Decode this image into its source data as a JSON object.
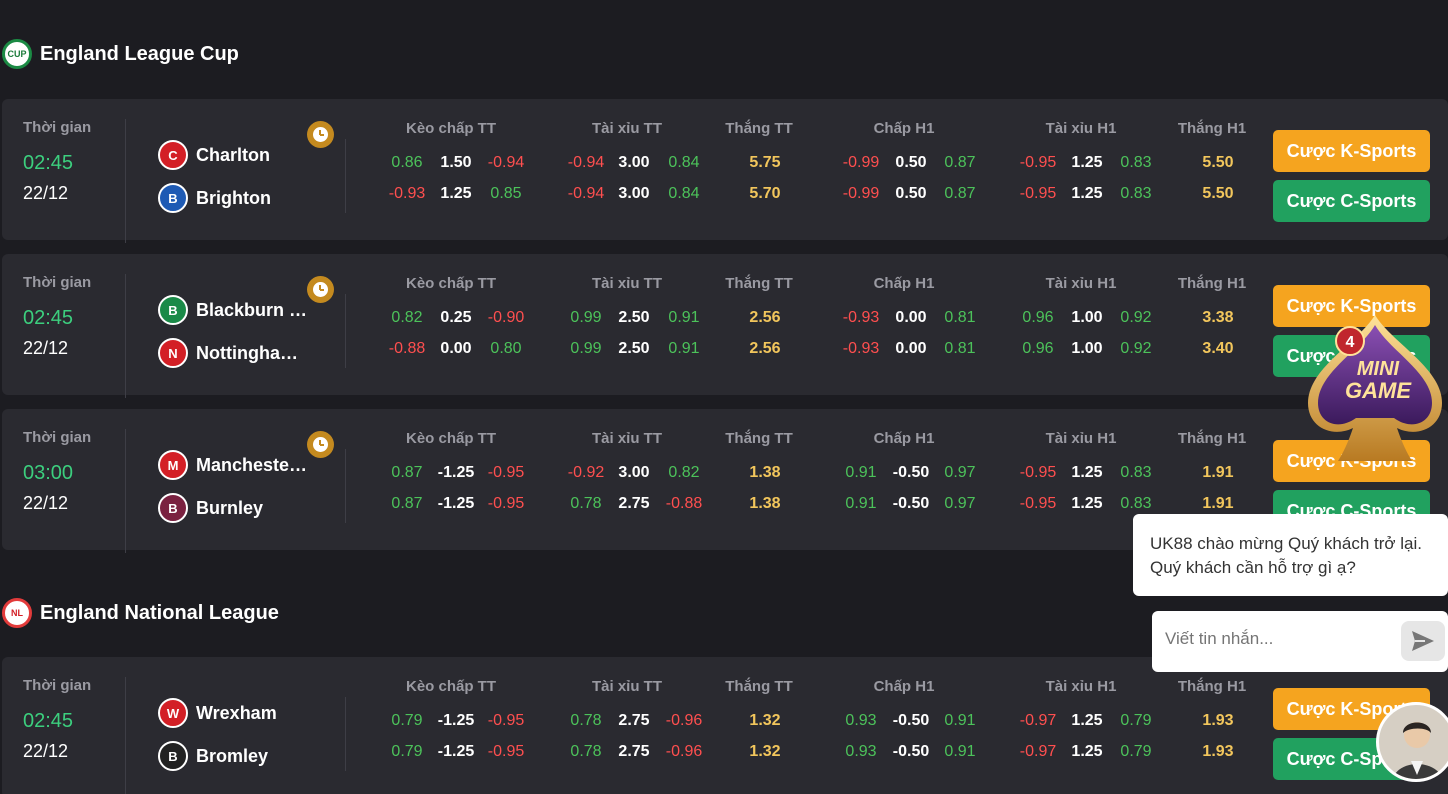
{
  "leagues": [
    {
      "name": "England League Cup",
      "logo_text": "CUP"
    },
    {
      "name": "England National League",
      "logo_text": "NL"
    }
  ],
  "column_headers": [
    "Kèo chấp TT",
    "Tài xỉu TT",
    "Thắng TT",
    "Chấp H1",
    "Tài xỉu H1",
    "Thắng H1"
  ],
  "time_label": "Thời gian",
  "buttons": {
    "k_sports": "Cược K-Sports",
    "c_sports": "Cược C-Sports"
  },
  "matches": [
    {
      "time": "02:45",
      "date": "22/12",
      "home": {
        "name": "Charlton",
        "logo": "C",
        "color": "#d31f26"
      },
      "away": {
        "name": "Brighton",
        "logo": "B",
        "color": "#1e5ab4"
      },
      "rows": [
        [
          "0.86",
          "1.50",
          "-0.94",
          "-0.94",
          "3.00",
          "0.84",
          "5.75",
          "-0.99",
          "0.50",
          "0.87",
          "-0.95",
          "1.25",
          "0.83",
          "5.50"
        ],
        [
          "-0.93",
          "1.25",
          "0.85",
          "-0.94",
          "3.00",
          "0.84",
          "5.70",
          "-0.99",
          "0.50",
          "0.87",
          "-0.95",
          "1.25",
          "0.83",
          "5.50"
        ]
      ]
    },
    {
      "time": "02:45",
      "date": "22/12",
      "home": {
        "name": "Blackburn Rovers",
        "logo": "B",
        "color": "#1a8a48"
      },
      "away": {
        "name": "Nottingham Forest",
        "logo": "N",
        "color": "#d31f26"
      },
      "rows": [
        [
          "0.82",
          "0.25",
          "-0.90",
          "0.99",
          "2.50",
          "0.91",
          "2.56",
          "-0.93",
          "0.00",
          "0.81",
          "0.96",
          "1.00",
          "0.92",
          "3.38"
        ],
        [
          "-0.88",
          "0.00",
          "0.80",
          "0.99",
          "2.50",
          "0.91",
          "2.56",
          "-0.93",
          "0.00",
          "0.81",
          "0.96",
          "1.00",
          "0.92",
          "3.40"
        ]
      ]
    },
    {
      "time": "03:00",
      "date": "22/12",
      "home": {
        "name": "Manchester United",
        "logo": "M",
        "color": "#d31f26"
      },
      "away": {
        "name": "Burnley",
        "logo": "B",
        "color": "#7a2140"
      },
      "rows": [
        [
          "0.87",
          "-1.25",
          "-0.95",
          "-0.92",
          "3.00",
          "0.82",
          "1.38",
          "0.91",
          "-0.50",
          "0.97",
          "-0.95",
          "1.25",
          "0.83",
          "1.91"
        ],
        [
          "0.87",
          "-1.25",
          "-0.95",
          "0.78",
          "2.75",
          "-0.88",
          "1.38",
          "0.91",
          "-0.50",
          "0.97",
          "-0.95",
          "1.25",
          "0.83",
          "1.91"
        ]
      ]
    },
    {
      "time": "02:45",
      "date": "22/12",
      "home": {
        "name": "Wrexham",
        "logo": "W",
        "color": "#d31f26"
      },
      "away": {
        "name": "Bromley",
        "logo": "B",
        "color": "#222"
      },
      "rows": [
        [
          "0.79",
          "-1.25",
          "-0.95",
          "0.78",
          "2.75",
          "-0.96",
          "1.32",
          "0.93",
          "-0.50",
          "0.91",
          "-0.97",
          "1.25",
          "0.79",
          "1.93"
        ],
        [
          "0.79",
          "-1.25",
          "-0.95",
          "0.78",
          "2.75",
          "-0.96",
          "1.32",
          "0.93",
          "-0.50",
          "0.91",
          "-0.97",
          "1.25",
          "0.79",
          "1.93"
        ]
      ]
    }
  ],
  "minigame": {
    "badge": "4",
    "line1": "MINI",
    "line2": "GAME"
  },
  "chat": {
    "greeting": "UK88 chào mừng Quý khách trở lại. Quý khách cần hỗ trợ gì ạ?",
    "placeholder": "Viết tin nhắn..."
  },
  "colors": {
    "positive": "#4cc25a",
    "negative": "#ff4f4f",
    "win": "#f2c65c",
    "time": "#3ccf7e",
    "k_button": "#f5a41f",
    "c_button": "#21a15f"
  }
}
